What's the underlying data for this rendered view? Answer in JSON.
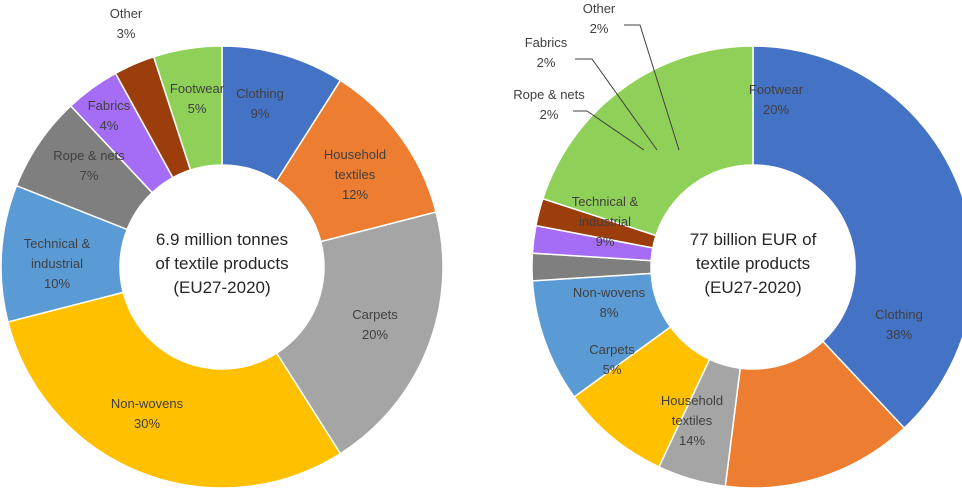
{
  "chart_data": [
    {
      "type": "donut",
      "center_text": [
        "6.9 million tonnes",
        "of textile products",
        "(EU27-2020)"
      ],
      "unit": "%",
      "slices": [
        {
          "name": "Clothing",
          "label_lines": [
            "Clothing",
            "9%"
          ],
          "value": 9,
          "color": "#4472c4"
        },
        {
          "name": "Household textiles",
          "label_lines": [
            "Household",
            "textiles",
            "12%"
          ],
          "value": 12,
          "color": "#ed7d31"
        },
        {
          "name": "Carpets",
          "label_lines": [
            "Carpets",
            "20%"
          ],
          "value": 20,
          "color": "#a5a5a5"
        },
        {
          "name": "Non-wovens",
          "label_lines": [
            "Non-wovens",
            "30%"
          ],
          "value": 30,
          "color": "#ffc000"
        },
        {
          "name": "Technical & industrial",
          "label_lines": [
            "Technical &",
            "industrial",
            "10%"
          ],
          "value": 10,
          "color": "#5b9bd5"
        },
        {
          "name": "Rope & nets",
          "label_lines": [
            "Rope & nets",
            "7%"
          ],
          "value": 7,
          "color": "#7f7f7f"
        },
        {
          "name": "Fabrics",
          "label_lines": [
            "Fabrics",
            "4%"
          ],
          "value": 4,
          "color": "#a56cf5"
        },
        {
          "name": "Other",
          "label_lines": [
            "Other",
            "3%"
          ],
          "value": 3,
          "color": "#9c3d0c"
        },
        {
          "name": "Footwear",
          "label_lines": [
            "Footwear",
            "5%"
          ],
          "value": 5,
          "color": "#8fd158"
        }
      ]
    },
    {
      "type": "donut",
      "center_text": [
        "77 billion  EUR of",
        "textile products",
        "(EU27-2020)"
      ],
      "unit": "%",
      "slices": [
        {
          "name": "Clothing",
          "label_lines": [
            "Clothing",
            "38%"
          ],
          "value": 38,
          "color": "#4472c4"
        },
        {
          "name": "Household textiles",
          "label_lines": [
            "Household",
            "textiles",
            "14%"
          ],
          "value": 14,
          "color": "#ed7d31"
        },
        {
          "name": "Carpets",
          "label_lines": [
            "Carpets",
            "5%"
          ],
          "value": 5,
          "color": "#a5a5a5"
        },
        {
          "name": "Non-wovens",
          "label_lines": [
            "Non-wovens",
            "8%"
          ],
          "value": 8,
          "color": "#ffc000"
        },
        {
          "name": "Technical & industrial",
          "label_lines": [
            "Technical &",
            "industrial",
            "9%"
          ],
          "value": 9,
          "color": "#5b9bd5"
        },
        {
          "name": "Rope & nets",
          "label_lines": [
            "Rope & nets",
            "2%"
          ],
          "value": 2,
          "color": "#7f7f7f"
        },
        {
          "name": "Fabrics",
          "label_lines": [
            "Fabrics",
            "2%"
          ],
          "value": 2,
          "color": "#a56cf5"
        },
        {
          "name": "Other",
          "label_lines": [
            "Other",
            "2%"
          ],
          "value": 2,
          "color": "#9c3d0c"
        },
        {
          "name": "Footwear",
          "label_lines": [
            "Footwear",
            "20%"
          ],
          "value": 20,
          "color": "#8fd158"
        }
      ]
    }
  ]
}
